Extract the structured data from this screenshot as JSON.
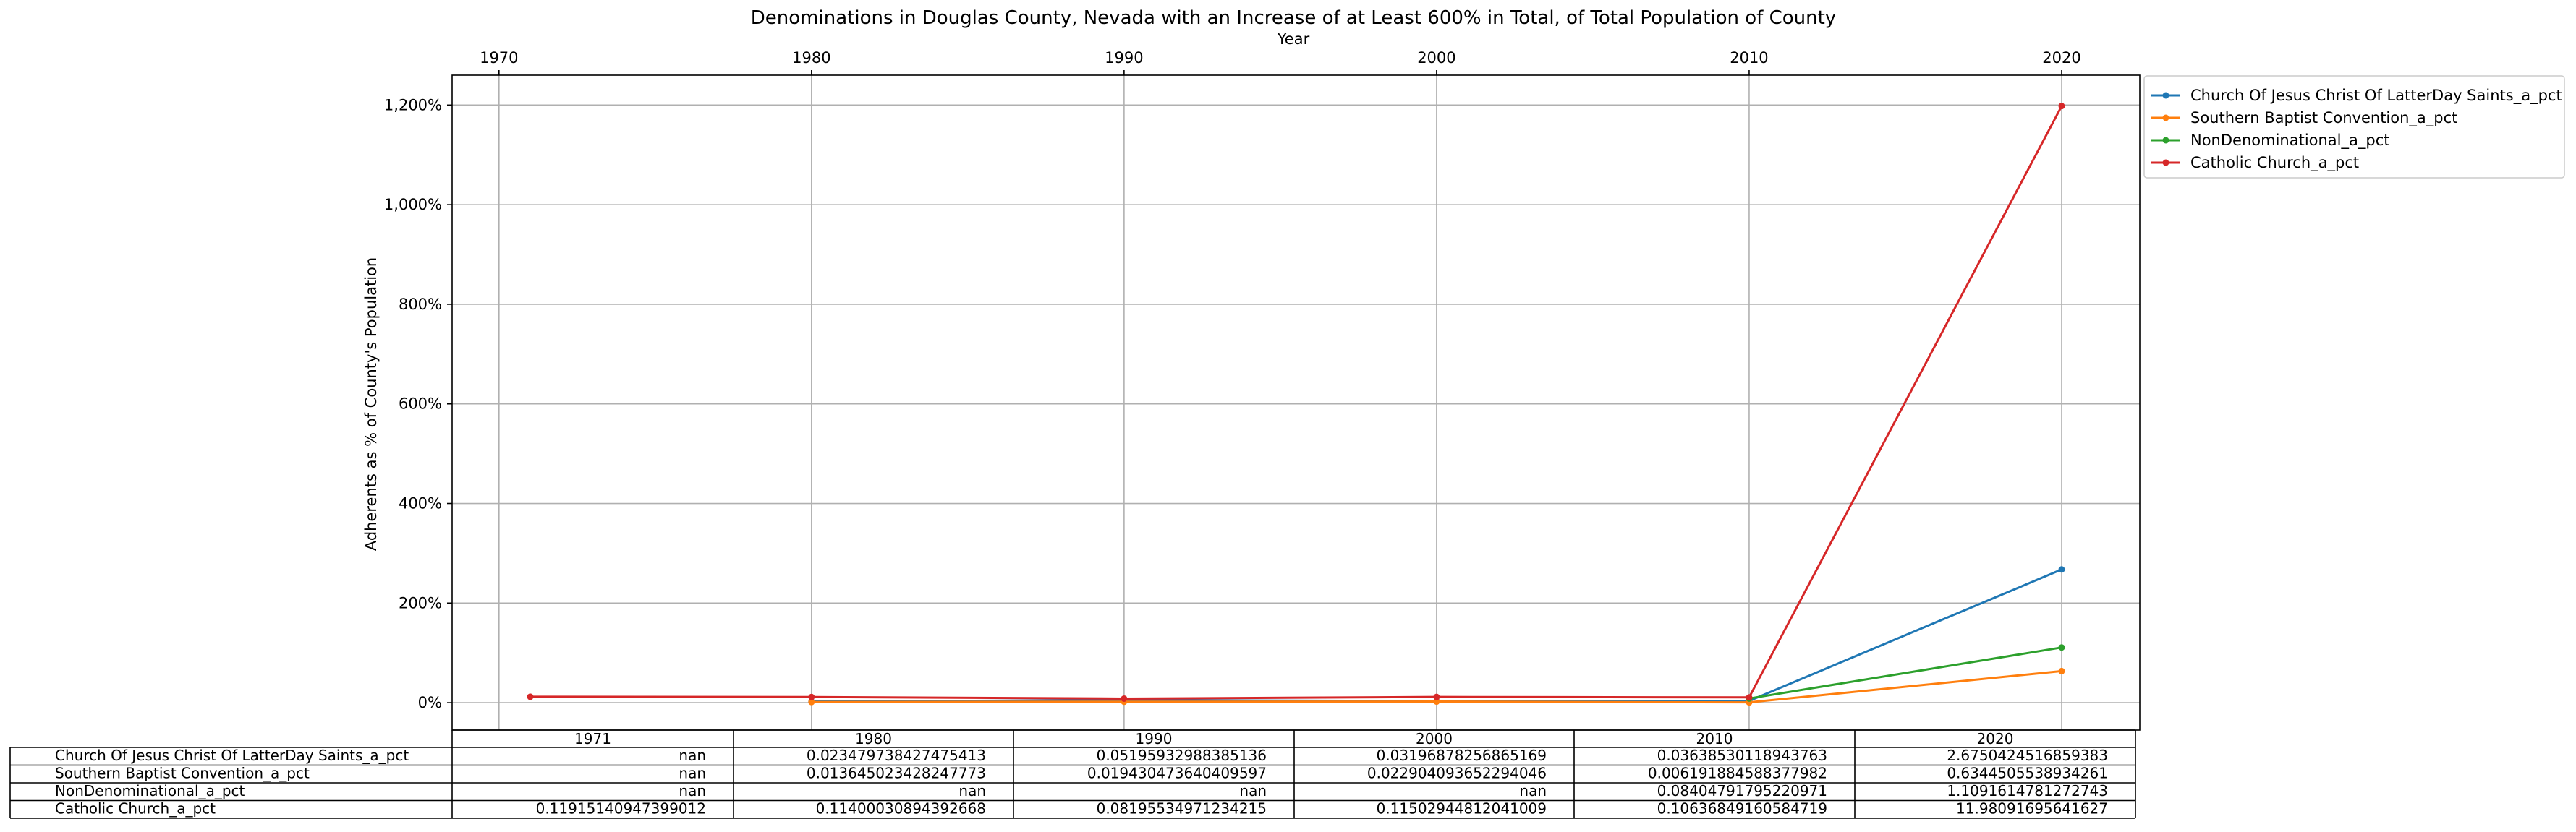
{
  "chart_data": {
    "type": "line",
    "title": "Denominations in Douglas County, Nevada with an Increase of at Least 600% in Total, of Total Population of County",
    "xlabel": "Year",
    "ylabel": "Adherents as % of County's Population",
    "x_ticks": [
      "1970",
      "1980",
      "1990",
      "2000",
      "2010",
      "2020"
    ],
    "xlim": [
      1968.5,
      2022.5
    ],
    "y_ticks": [
      0,
      200,
      400,
      600,
      800,
      1000,
      1200
    ],
    "y_tick_labels": [
      "0%",
      "200%",
      "400%",
      "600%",
      "800%",
      "1,000%",
      "1,200%"
    ],
    "ylim": [
      -55,
      1260
    ],
    "grid": true,
    "legend_position": "outside upper right",
    "x": [
      1971,
      1980,
      1990,
      2000,
      2010,
      2020
    ],
    "series": [
      {
        "name": "Church Of Jesus Christ Of LatterDay Saints_a_pct",
        "color": "#1f77b4",
        "values": [
          null,
          2.347973842747541,
          5.195932988385136,
          3.196878256865169,
          3.638530118943763,
          267.50424516859385
        ]
      },
      {
        "name": "Southern Baptist Convention_a_pct",
        "color": "#ff7f0e",
        "values": [
          null,
          1.364502342824777,
          1.94304736404096,
          2.290409365229405,
          0.619188458837798,
          63.44505538934261
        ]
      },
      {
        "name": "NonDenominational_a_pct",
        "color": "#2ca02c",
        "values": [
          null,
          null,
          null,
          null,
          8.404791795220971,
          110.91614781272743
        ]
      },
      {
        "name": "Catholic Church_a_pct",
        "color": "#d62728",
        "values": [
          11.915140947399012,
          11.400030894392668,
          8.195534971234215,
          11.50294481204101,
          10.636849160584719,
          1198.091695641627
        ]
      }
    ],
    "table": {
      "columns": [
        "1971",
        "1980",
        "1990",
        "2000",
        "2010",
        "2020"
      ],
      "rows": [
        {
          "label": "Church Of Jesus Christ Of LatterDay Saints_a_pct",
          "cells": [
            "nan",
            "0.023479738427475413",
            "0.05195932988385136",
            "0.03196878256865169",
            "0.03638530118943763",
            "2.6750424516859383"
          ]
        },
        {
          "label": "Southern Baptist Convention_a_pct",
          "cells": [
            "nan",
            "0.013645023428247773",
            "0.019430473640409597",
            "0.022904093652294046",
            "0.006191884588377982",
            "0.6344505538934261"
          ]
        },
        {
          "label": "NonDenominational_a_pct",
          "cells": [
            "nan",
            "nan",
            "nan",
            "nan",
            "0.08404791795220971",
            "1.1091614781272743"
          ]
        },
        {
          "label": "Catholic Church_a_pct",
          "cells": [
            "0.11915140947399012",
            "0.11400030894392668",
            "0.08195534971234215",
            "0.11502944812041009",
            "0.10636849160584719",
            "11.98091695641627"
          ]
        }
      ]
    }
  }
}
